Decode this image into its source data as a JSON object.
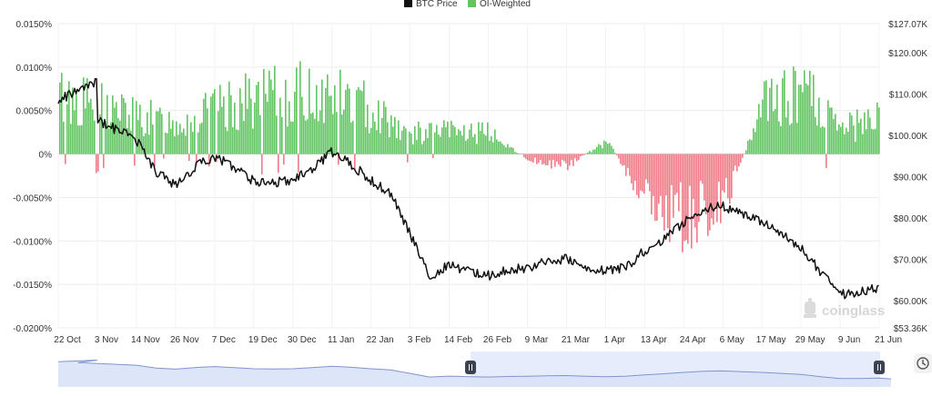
{
  "legend": {
    "btc_label": "BTC Price",
    "oi_label": "OI-Weighted"
  },
  "watermark": "coinglass",
  "colors": {
    "positive": "#62c462",
    "negative": "#f07a86",
    "price_line": "#111111",
    "navigator_line": "#7f95cf",
    "navigator_fill": "#d9e2f7",
    "navigator_selected": "#e6ecfb"
  },
  "chart_data": {
    "type": "area",
    "title": "",
    "xlabel": "",
    "ylabel_left": "",
    "ylabel_right": "",
    "legend_position": "top-center",
    "grid": true,
    "left_axis": {
      "ylim": [
        -0.02,
        0.015
      ],
      "ticks": [
        0.015,
        0.01,
        0.005,
        0,
        -0.005,
        -0.01,
        -0.015,
        -0.02
      ],
      "tick_labels": [
        "0.0150%",
        "0.0100%",
        "0.0050%",
        "0%",
        "-0.0050%",
        "-0.0100%",
        "-0.0150%",
        "-0.0200%"
      ]
    },
    "right_axis": {
      "ylim": [
        53.36,
        127.07
      ],
      "ticks": [
        127.07,
        120,
        110,
        100,
        90,
        80,
        70,
        60,
        53.36
      ],
      "tick_labels": [
        "$127.07K",
        "$120.00K",
        "$110.00K",
        "$100.00K",
        "$90.00K",
        "$80.00K",
        "$70.00K",
        "$60.00K",
        "$53.36K"
      ]
    },
    "x_tick_labels": [
      "22 Oct",
      "3 Nov",
      "14 Nov",
      "26 Nov",
      "7 Dec",
      "19 Dec",
      "30 Dec",
      "11 Jan",
      "22 Jan",
      "3 Feb",
      "14 Feb",
      "26 Feb",
      "9 Mar",
      "21 Mar",
      "1 Apr",
      "13 Apr",
      "24 Apr",
      "6 May",
      "17 May",
      "29 May",
      "9 Jun",
      "21 Jun"
    ],
    "series": [
      {
        "name": "BTC Price",
        "axis": "right",
        "unit": "$K",
        "x": [
          "22 Oct",
          "3 Nov",
          "10 Nov",
          "14 Nov",
          "20 Nov",
          "26 Nov",
          "3 Dec",
          "7 Dec",
          "13 Dec",
          "19 Dec",
          "24 Dec",
          "30 Dec",
          "5 Jan",
          "11 Jan",
          "17 Jan",
          "22 Jan",
          "27 Jan",
          "3 Feb",
          "9 Feb",
          "14 Feb",
          "20 Feb",
          "26 Feb",
          "3 Mar",
          "9 Mar",
          "15 Mar",
          "21 Mar",
          "27 Mar",
          "1 Apr",
          "7 Apr",
          "13 Apr",
          "19 Apr",
          "24 Apr",
          "30 Apr",
          "6 May",
          "11 May",
          "17 May",
          "23 May",
          "29 May",
          "4 Jun",
          "9 Jun",
          "15 Jun",
          "21 Jun",
          "24 Jun"
        ],
        "values": [
          108.5,
          113,
          106,
          99,
          91,
          88,
          93,
          95,
          92,
          89,
          88.5,
          89,
          92,
          96,
          93,
          89,
          86,
          76,
          66,
          68.5,
          67,
          66,
          67.5,
          68,
          69.5,
          70,
          68,
          67,
          68,
          72,
          75,
          79,
          82,
          83,
          81,
          79,
          76,
          73,
          67,
          61.5,
          62,
          63,
          60.5
        ]
      },
      {
        "name": "OI-Weighted",
        "axis": "left",
        "unit": "%",
        "description": "funding rate bars, positive green / negative red",
        "x": [
          "22 Oct",
          "3 Nov",
          "14 Nov",
          "26 Nov",
          "7 Dec",
          "19 Dec",
          "30 Dec",
          "11 Jan",
          "22 Jan",
          "3 Feb",
          "14 Feb",
          "26 Feb",
          "9 Mar",
          "21 Mar",
          "1 Apr",
          "13 Apr",
          "24 Apr",
          "6 May",
          "17 May",
          "29 May",
          "9 Jun",
          "21 Jun"
        ],
        "values": [
          0.0082,
          0.0071,
          0.0053,
          0.0045,
          0.0062,
          0.0078,
          0.0086,
          0.0084,
          0.0066,
          0.0029,
          0.0033,
          0.0029,
          -0.0007,
          -0.0018,
          0.0021,
          -0.0063,
          -0.0096,
          -0.0075,
          0.0066,
          0.0092,
          0.0034,
          0.0052
        ]
      }
    ]
  }
}
